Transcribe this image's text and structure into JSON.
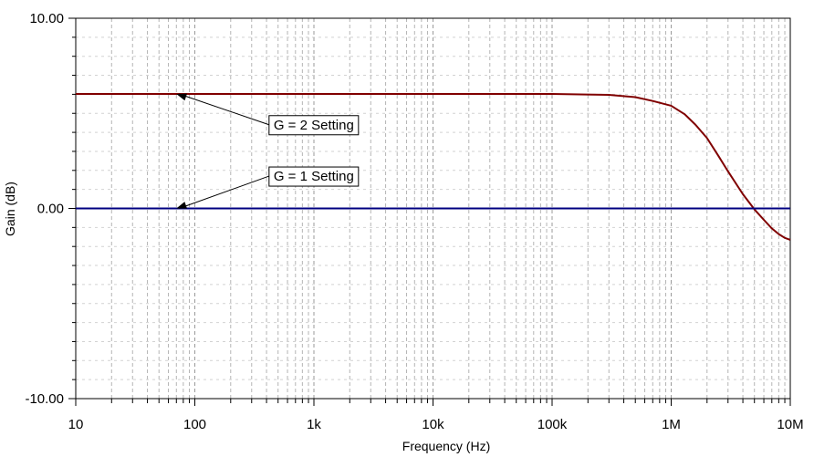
{
  "chart_data": {
    "type": "line",
    "xlabel": "Frequency (Hz)",
    "ylabel": "Gain (dB)",
    "x_scale": "log",
    "xlim": [
      10,
      10000000
    ],
    "ylim": [
      -10,
      10
    ],
    "grid": "on",
    "x_ticks": [
      {
        "value": 10,
        "label": "10"
      },
      {
        "value": 100,
        "label": "100"
      },
      {
        "value": 1000,
        "label": "1k"
      },
      {
        "value": 10000,
        "label": "10k"
      },
      {
        "value": 100000,
        "label": "100k"
      },
      {
        "value": 1000000,
        "label": "1M"
      },
      {
        "value": 10000000,
        "label": "10M"
      }
    ],
    "y_ticks": [
      {
        "value": 10,
        "label": "10.00"
      },
      {
        "value": 0,
        "label": "0.00"
      },
      {
        "value": -10,
        "label": "-10.00"
      }
    ],
    "series": [
      {
        "color": "#800000",
        "x": [
          10,
          100,
          1000,
          10000,
          100000,
          300000,
          500000,
          700000,
          1000000,
          1300000,
          1600000,
          2000000,
          2500000,
          3000000,
          4000000,
          5000000,
          6000000,
          7000000,
          8000000,
          9000000,
          10000000
        ],
        "y": [
          6.02,
          6.02,
          6.02,
          6.02,
          6.02,
          5.97,
          5.85,
          5.65,
          5.4,
          4.95,
          4.4,
          3.7,
          2.75,
          1.95,
          0.75,
          -0.05,
          -0.6,
          -1.05,
          -1.35,
          -1.55,
          -1.65
        ]
      },
      {
        "color": "#000080",
        "x": [
          10,
          10000000
        ],
        "y": [
          0,
          0
        ]
      }
    ],
    "annotations": [
      {
        "text": "G = 2 Setting",
        "series": 0,
        "point_x": 70,
        "point_y": 6.02,
        "label_x": 420,
        "label_y": 4.4
      },
      {
        "text": "G = 1 Setting",
        "series": 1,
        "point_x": 70,
        "point_y": 0,
        "label_x": 420,
        "label_y": 1.7
      }
    ]
  }
}
